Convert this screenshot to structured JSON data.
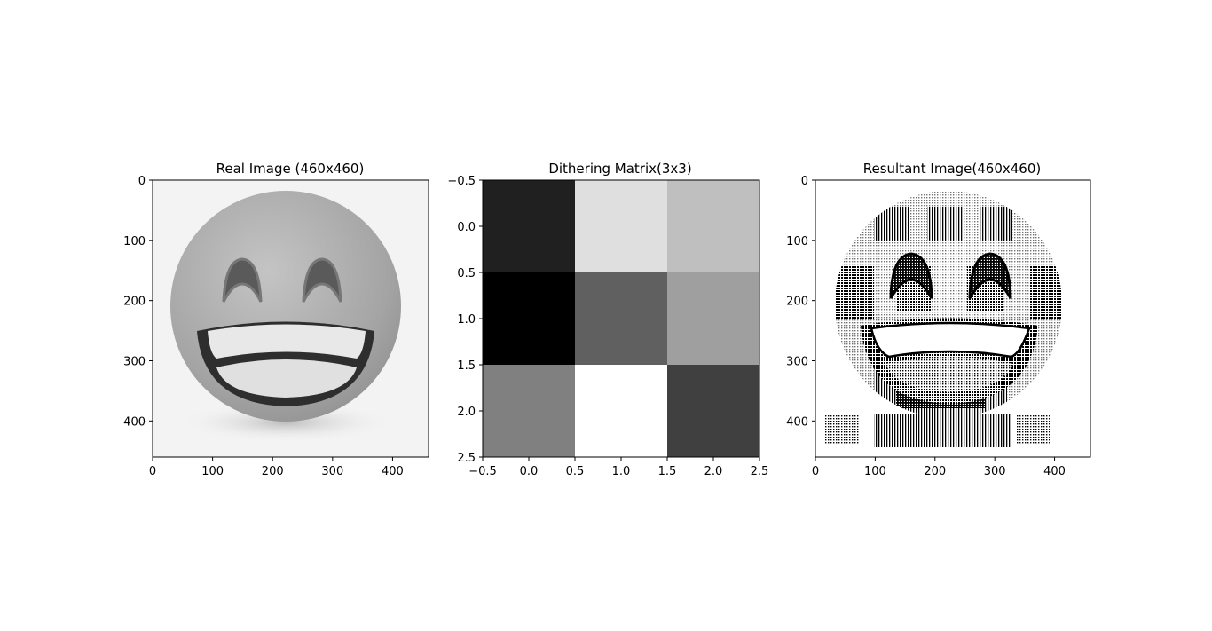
{
  "chart_data": [
    {
      "type": "image",
      "title": "Real Image (460x460)",
      "xlim": [
        0,
        460
      ],
      "ylim": [
        460,
        0
      ],
      "xticks": [
        0,
        100,
        200,
        300,
        400
      ],
      "yticks": [
        0,
        100,
        200,
        300,
        400
      ],
      "content": "grayscale grinning face emoji",
      "cmap": "gray"
    },
    {
      "type": "heatmap",
      "title": "Dithering Matrix(3x3)",
      "xlim": [
        -0.5,
        2.5
      ],
      "ylim": [
        2.5,
        -0.5
      ],
      "xticks": [
        "−0.5",
        "0.0",
        "0.5",
        "1.0",
        "1.5",
        "2.0",
        "2.5"
      ],
      "yticks": [
        "−0.5",
        "0.0",
        "0.5",
        "1.0",
        "1.5",
        "2.0",
        "2.5"
      ],
      "cmap": "gray",
      "values": [
        [
          1,
          7,
          6
        ],
        [
          0,
          3,
          5
        ],
        [
          4,
          8,
          2
        ]
      ]
    },
    {
      "type": "image",
      "title": "Resultant Image(460x460)",
      "xlim": [
        0,
        460
      ],
      "ylim": [
        460,
        0
      ],
      "xticks": [
        0,
        100,
        200,
        300,
        400
      ],
      "yticks": [
        0,
        100,
        200,
        300,
        400
      ],
      "content": "ordered-dithered black and white emoji",
      "cmap": "binary"
    }
  ]
}
